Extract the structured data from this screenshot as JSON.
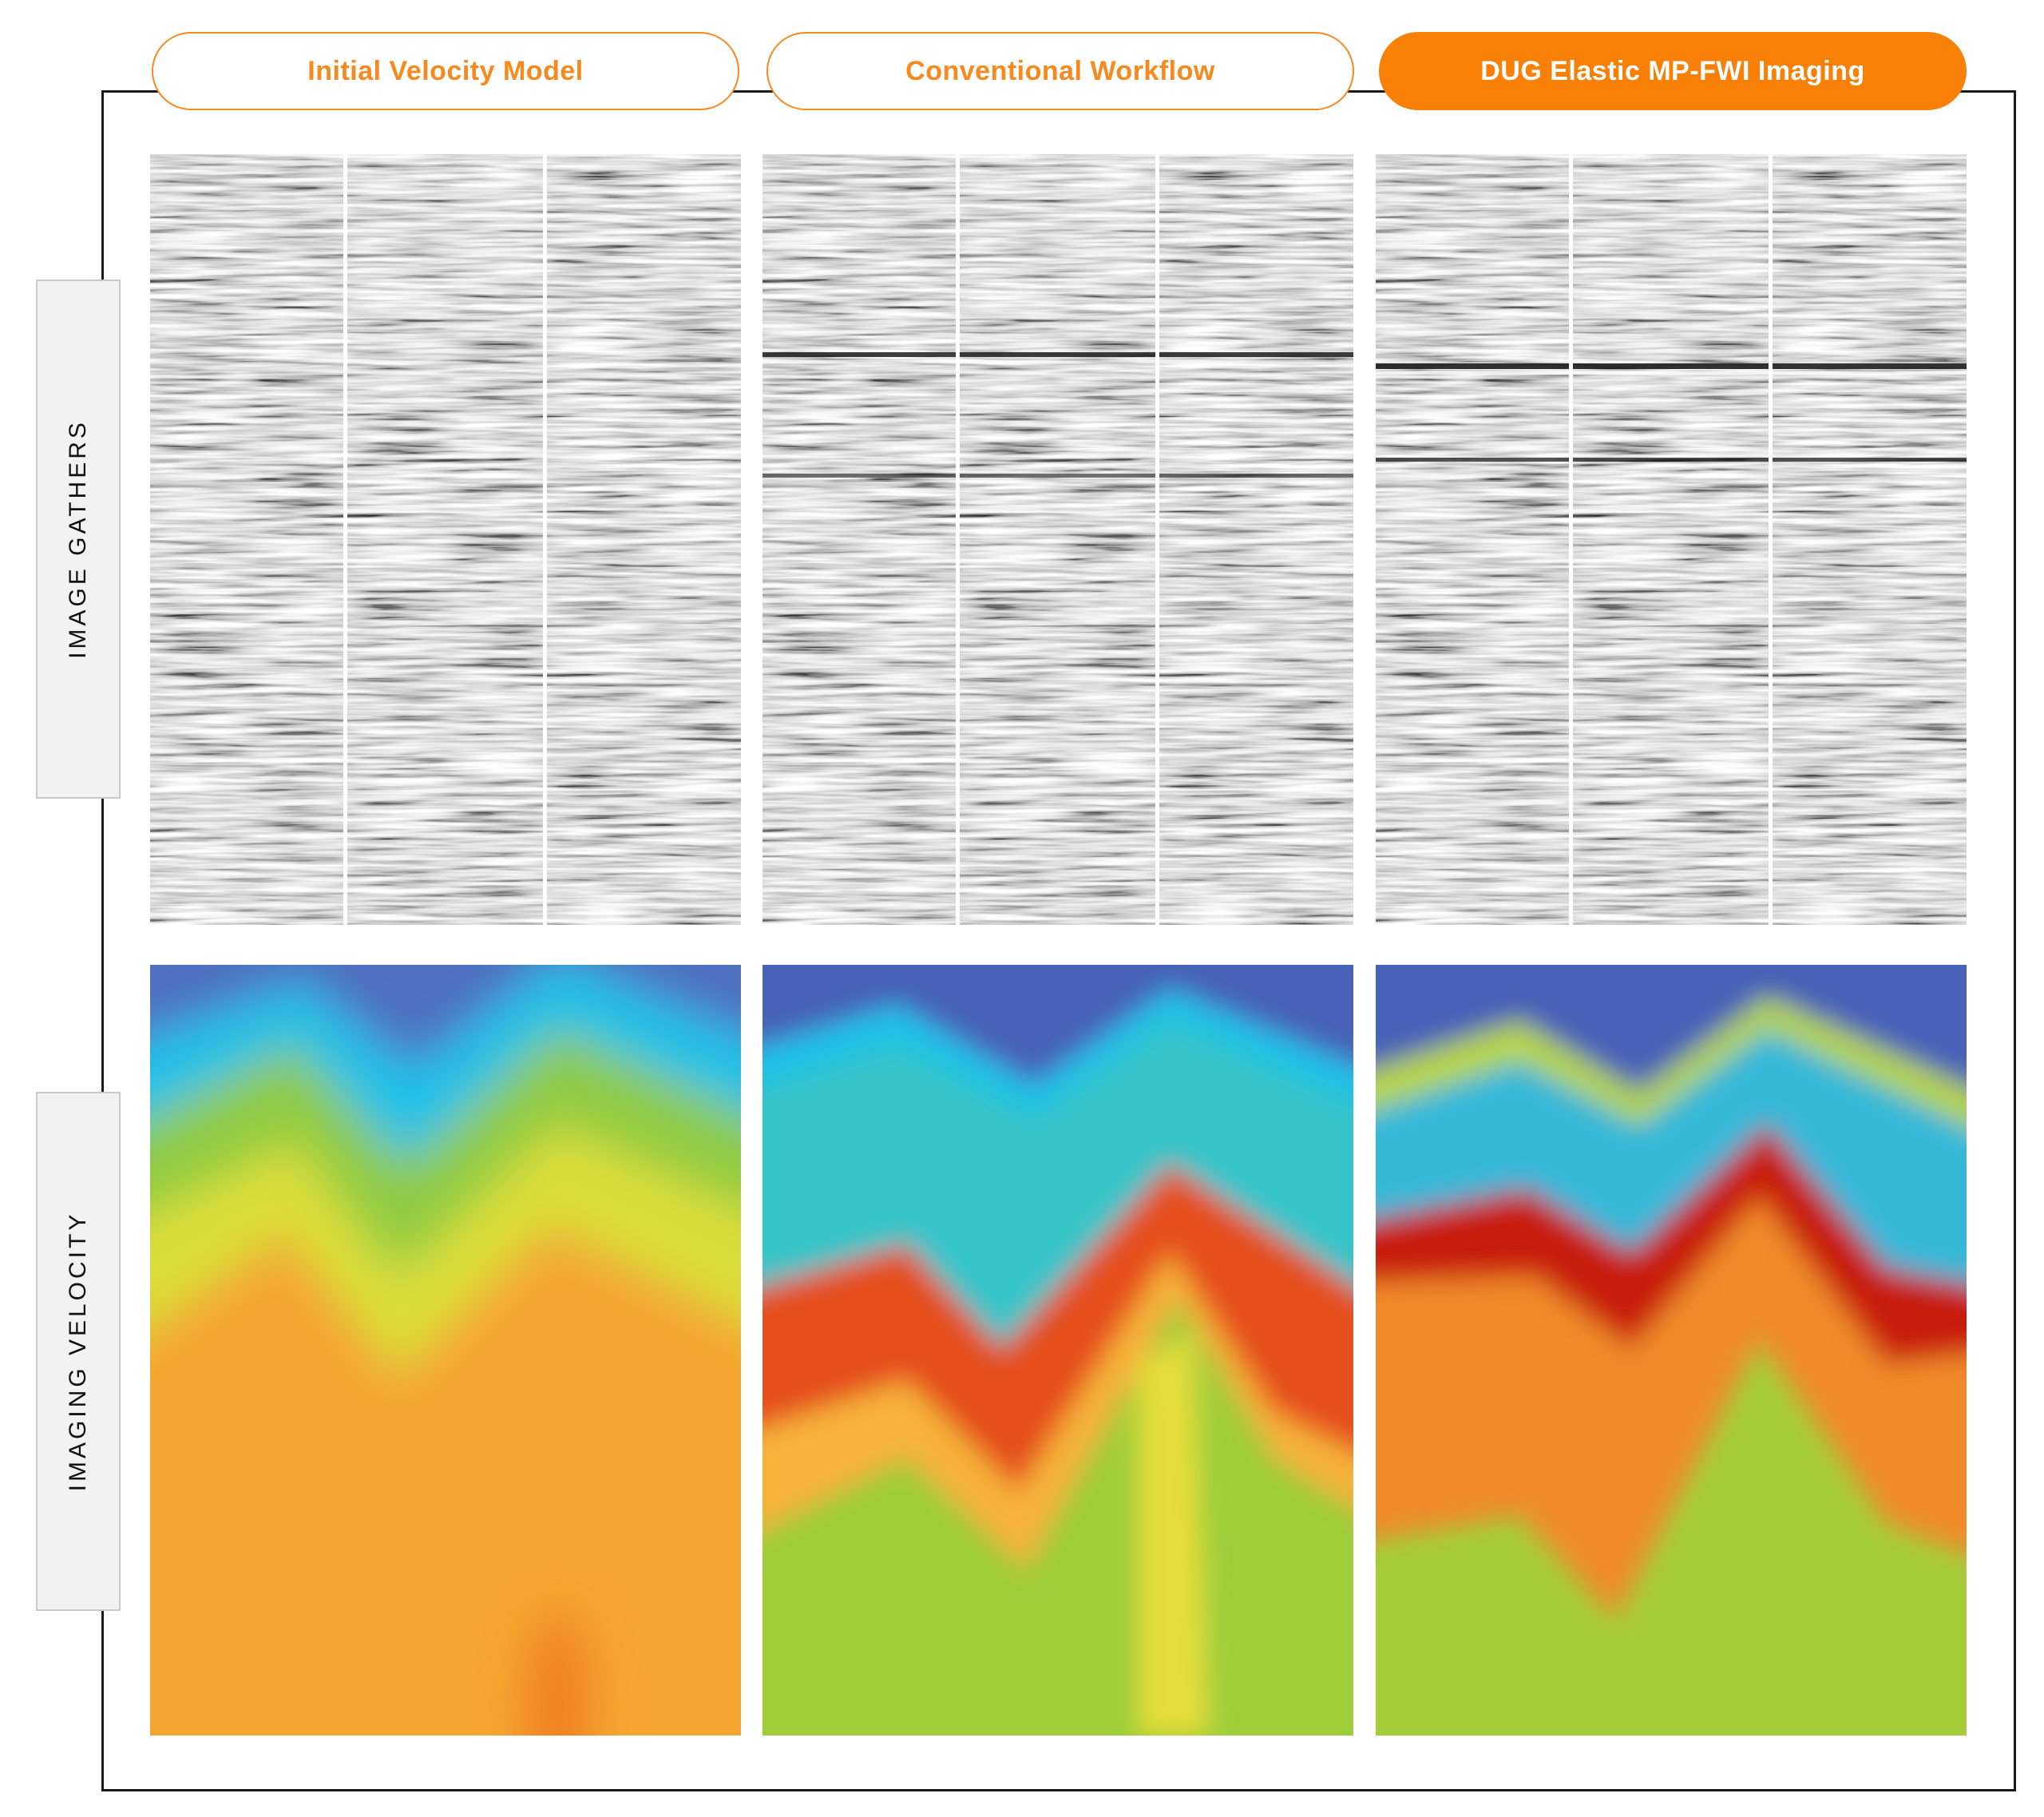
{
  "tabs": [
    {
      "label": "Initial Velocity Model",
      "active": false
    },
    {
      "label": "Conventional Workflow",
      "active": false
    },
    {
      "label": "DUG Elastic MP-FWI Imaging",
      "active": true
    }
  ],
  "rows": {
    "gathers_label": "IMAGE GATHERS",
    "velocity_label": "IMAGING VELOCITY"
  },
  "colors": {
    "accent_orange": "#f98007",
    "frame": "#1a1a1a",
    "label_bg": "#f2f2f2"
  }
}
